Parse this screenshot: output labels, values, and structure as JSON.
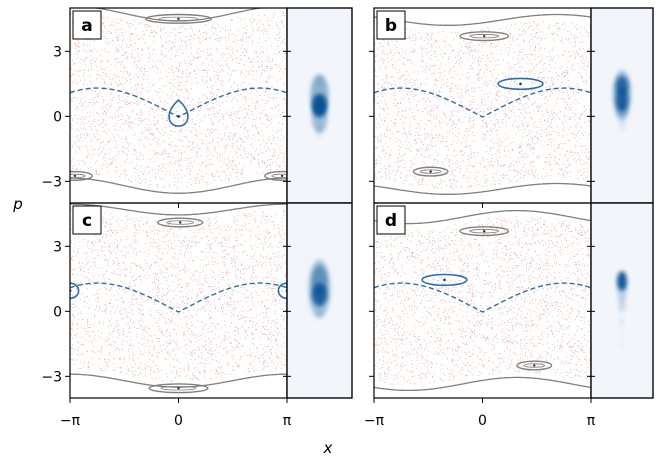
{
  "colors": {
    "chaos_dots": "#e06070",
    "regular_orbit": "#808080",
    "separatrix": "#2a6fa8",
    "island": "#2a6fa8",
    "inset_blob": "#0b4f92",
    "inset_bg": "#f2f6fb"
  },
  "chart_data": {
    "type": "scatter",
    "xlabel": "x",
    "ylabel": "p",
    "x_tick_labels": [
      "−π",
      "0",
      "π"
    ],
    "y_tick_labels": [
      "3",
      "0",
      "−3"
    ],
    "x_ticks": [
      -3.14159,
      0,
      3.14159
    ],
    "y_ticks": [
      3,
      0,
      -3
    ],
    "xlim": [
      -3.14159,
      3.14159
    ],
    "ylim": [
      -4,
      5
    ],
    "grid": false,
    "panels": [
      {
        "letter": "a",
        "separatrix_shift": 0,
        "island": {
          "x": 0,
          "p": 0,
          "rx": 0.3,
          "rp": 0.75
        },
        "wrap_island": false,
        "upper_islands": [
          {
            "x": 0,
            "p": 4.5,
            "rx": 0.95,
            "rp": 0.2
          }
        ],
        "lower_islands": [
          {
            "x": -3.0,
            "p": -2.75,
            "rx": 0.5,
            "rp": 0.2
          },
          {
            "x": 3.0,
            "p": -2.75,
            "rx": 0.5,
            "rp": 0.2
          }
        ],
        "upper_orbit": {
          "base": 4.75,
          "amp": -0.35,
          "phase": 0
        },
        "lower_orbit": {
          "base": -3.2,
          "amp": -0.35,
          "phase": 0
        },
        "inset_blobs": [
          {
            "y": 0.5,
            "rx": 0.12,
            "ry": 0.06,
            "w": 0.95
          },
          {
            "y": 0.44,
            "rx": 0.14,
            "ry": 0.1,
            "w": 0.4
          },
          {
            "y": 0.56,
            "rx": 0.12,
            "ry": 0.08,
            "w": 0.35
          },
          {
            "y": 0.38,
            "rx": 0.05,
            "ry": 0.03,
            "w": 0.12
          },
          {
            "y": 0.63,
            "rx": 0.05,
            "ry": 0.03,
            "w": 0.1
          }
        ]
      },
      {
        "letter": "b",
        "separatrix_shift": 0,
        "island": {
          "x": 1.1,
          "p": 1.5,
          "rx": 0.65,
          "rp": 0.25
        },
        "wrap_island": false,
        "upper_islands": [
          {
            "x": 0.05,
            "p": 3.7,
            "rx": 0.7,
            "rp": 0.2
          }
        ],
        "lower_islands": [
          {
            "x": -1.5,
            "p": -2.55,
            "rx": 0.5,
            "rp": 0.2
          }
        ],
        "upper_orbit": {
          "base": 4.45,
          "amp": -0.25,
          "phase": 1.0
        },
        "lower_orbit": {
          "base": -3.35,
          "amp": -0.25,
          "phase": 1.0
        },
        "inset_blobs": [
          {
            "y": 0.4,
            "rx": 0.1,
            "ry": 0.05,
            "w": 0.8
          },
          {
            "y": 0.47,
            "rx": 0.1,
            "ry": 0.06,
            "w": 0.85
          },
          {
            "y": 0.44,
            "rx": 0.15,
            "ry": 0.12,
            "w": 0.35
          },
          {
            "y": 0.53,
            "rx": 0.1,
            "ry": 0.05,
            "w": 0.25
          },
          {
            "y": 0.6,
            "rx": 0.05,
            "ry": 0.03,
            "w": 0.1
          }
        ]
      },
      {
        "letter": "c",
        "separatrix_shift": 0,
        "island": {
          "x": -3.14159,
          "p": 0.95,
          "rx": 0.25,
          "rp": 0.35
        },
        "wrap_island": true,
        "upper_islands": [
          {
            "x": 0.05,
            "p": 4.1,
            "rx": 0.65,
            "rp": 0.2
          }
        ],
        "lower_islands": [
          {
            "x": 0,
            "p": -3.55,
            "rx": 0.85,
            "rp": 0.2
          }
        ],
        "upper_orbit": {
          "base": 4.7,
          "amp": -0.25,
          "phase": 0
        },
        "lower_orbit": {
          "base": -3.2,
          "amp": -0.3,
          "phase": 0
        },
        "inset_blobs": [
          {
            "y": 0.47,
            "rx": 0.12,
            "ry": 0.06,
            "w": 0.85
          },
          {
            "y": 0.4,
            "rx": 0.12,
            "ry": 0.08,
            "w": 0.45
          },
          {
            "y": 0.44,
            "rx": 0.17,
            "ry": 0.15,
            "w": 0.3
          },
          {
            "y": 0.56,
            "rx": 0.05,
            "ry": 0.03,
            "w": 0.1
          }
        ]
      },
      {
        "letter": "d",
        "separatrix_shift": 0,
        "island": {
          "x": -1.1,
          "p": 1.45,
          "rx": 0.65,
          "rp": 0.25
        },
        "wrap_island": false,
        "upper_islands": [
          {
            "x": 0.05,
            "p": 3.7,
            "rx": 0.7,
            "rp": 0.2
          }
        ],
        "lower_islands": [
          {
            "x": 1.5,
            "p": -2.5,
            "rx": 0.5,
            "rp": 0.2
          }
        ],
        "upper_orbit": {
          "base": 4.35,
          "amp": 0.3,
          "phase": -1.0
        },
        "lower_orbit": {
          "base": -3.35,
          "amp": 0.3,
          "phase": -1.0
        },
        "inset_blobs": [
          {
            "y": 0.4,
            "rx": 0.08,
            "ry": 0.05,
            "w": 0.95
          },
          {
            "y": 0.45,
            "rx": 0.08,
            "ry": 0.05,
            "w": 0.2
          },
          {
            "y": 0.52,
            "rx": 0.06,
            "ry": 0.04,
            "w": 0.18
          },
          {
            "y": 0.61,
            "rx": 0.03,
            "ry": 0.02,
            "w": 0.12
          },
          {
            "y": 0.67,
            "rx": 0.02,
            "ry": 0.02,
            "w": 0.1
          },
          {
            "y": 0.73,
            "rx": 0.02,
            "ry": 0.02,
            "w": 0.08
          }
        ]
      }
    ]
  }
}
